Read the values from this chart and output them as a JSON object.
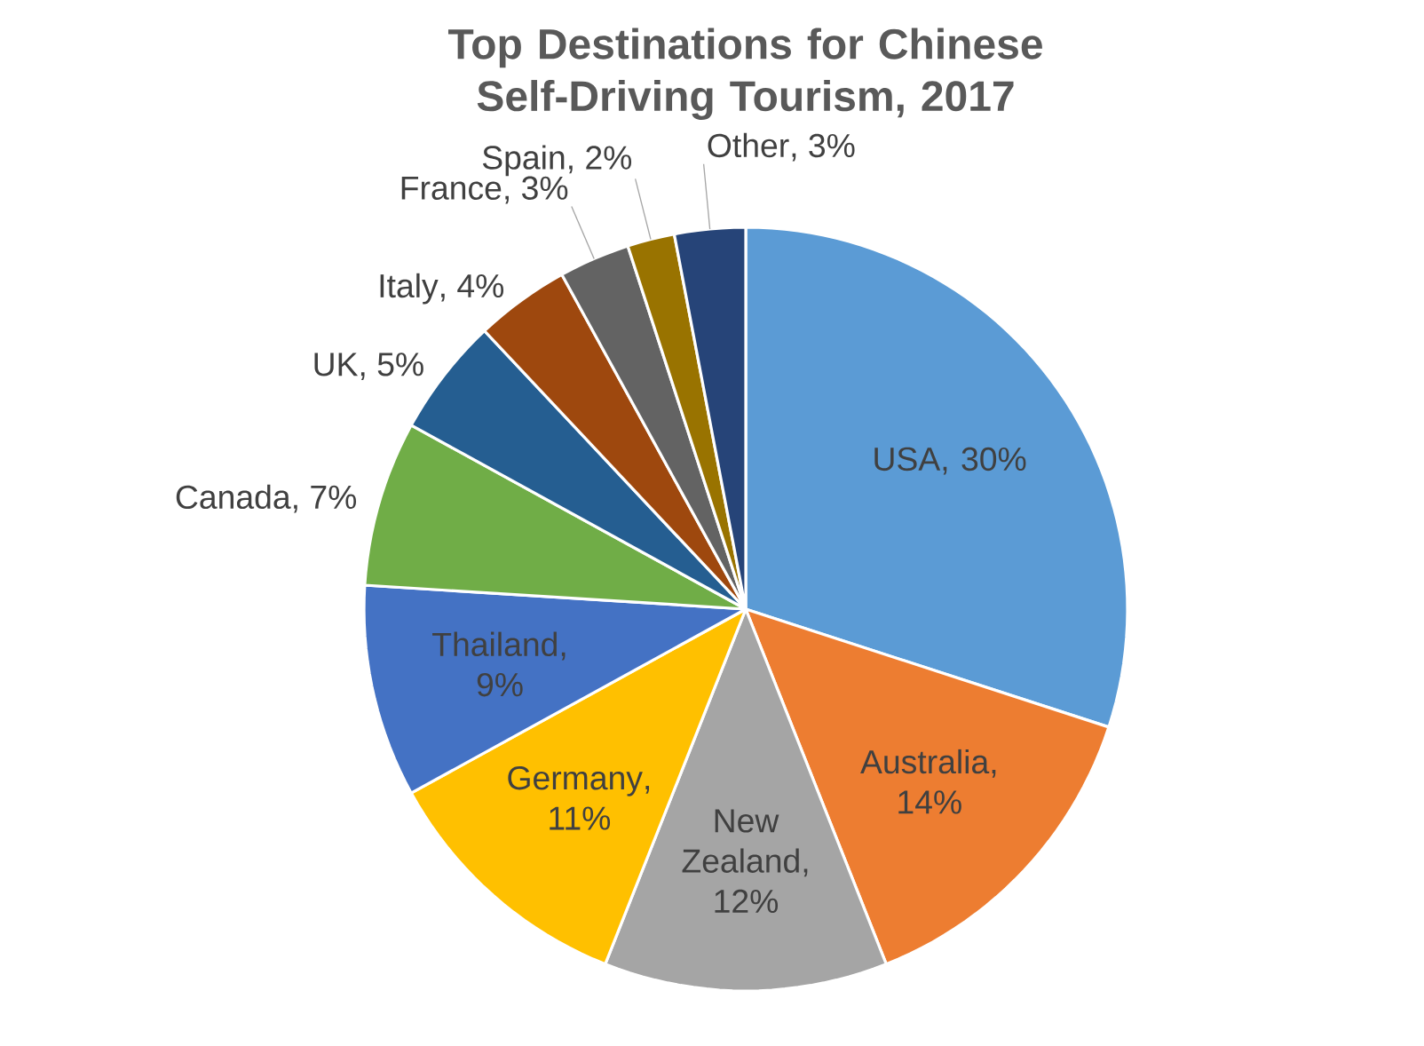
{
  "chart_data": {
    "type": "pie",
    "title": "Top Destinations for Chinese Self-Driving Tourism, 2017",
    "categories": [
      "USA",
      "Australia",
      "New Zealand",
      "Germany",
      "Thailand",
      "Canada",
      "UK",
      "Italy",
      "France",
      "Spain",
      "Other"
    ],
    "values": [
      30,
      14,
      12,
      11,
      9,
      7,
      5,
      4,
      3,
      2,
      3
    ],
    "colors": [
      "#5b9bd5",
      "#ed7d31",
      "#a5a5a5",
      "#ffc000",
      "#4472c4",
      "#70ad47",
      "#255e91",
      "#9e480e",
      "#636363",
      "#997300",
      "#264478"
    ],
    "value_labels": [
      ", 30%",
      ", 14%",
      ", 12%",
      ", 11%",
      ", 9%",
      ", 7%",
      ", 5%",
      ", 4%",
      ", 3%",
      ", 2%",
      ", 3%"
    ]
  }
}
